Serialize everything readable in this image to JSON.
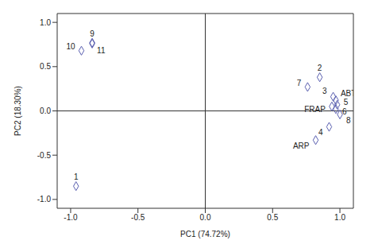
{
  "chart_data": {
    "type": "scatter",
    "x_label": "PC1 (74.72%)",
    "y_label": "PC2 (18.30%)",
    "labels": [
      "1",
      "2",
      "3",
      "4",
      "5",
      "6",
      "7",
      "8",
      "9",
      "10",
      "11",
      "ABTS",
      "FRAP",
      "ARP"
    ],
    "x": [
      -0.96,
      0.85,
      0.95,
      0.92,
      0.98,
      0.97,
      0.76,
      1.0,
      -0.84,
      -0.92,
      -0.84,
      0.97,
      0.94,
      0.82
    ],
    "y": [
      -0.85,
      0.38,
      0.16,
      -0.18,
      0.07,
      0.02,
      0.27,
      -0.04,
      0.77,
      0.68,
      0.76,
      0.12,
      0.05,
      -0.33
    ],
    "xlim": [
      -1.1,
      1.1
    ],
    "ylim": [
      -1.1,
      1.1
    ],
    "xticks": [
      {
        "value": -1,
        "label": "-1.0"
      },
      -0.5,
      {
        "value": 0,
        "label": "0.0"
      },
      0.5,
      {
        "value": 1,
        "label": "1.0"
      }
    ],
    "yticks": [
      {
        "value": -1,
        "label": "-1.0"
      },
      -0.5,
      {
        "value": 0,
        "label": "0.0"
      },
      0.5,
      {
        "value": 1,
        "label": "1.0"
      }
    ],
    "marker": "diamond",
    "color": "#5a5fb0",
    "grid": false
  }
}
